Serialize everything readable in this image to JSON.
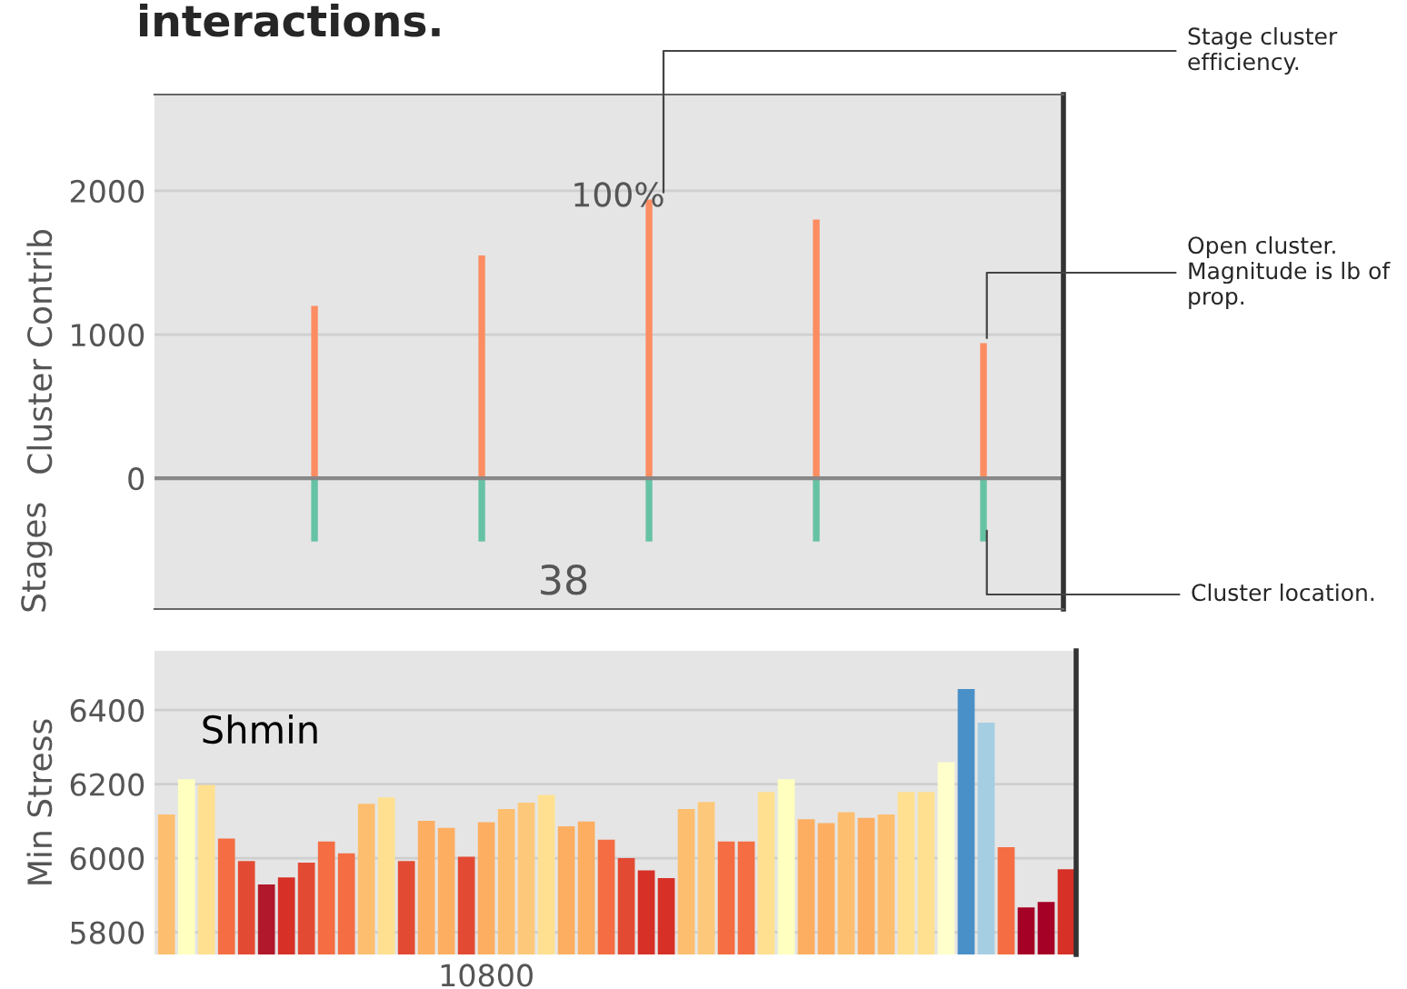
{
  "chart_data": [
    {
      "type": "bar",
      "title": "interactions.",
      "ylabel": "Cluster Contrib",
      "categories": [
        null,
        null,
        null,
        null,
        null
      ],
      "series": [
        {
          "color": "#fc8d62",
          "values": [
            1200,
            1550,
            1940,
            1800,
            940
          ]
        },
        {
          "color": "#66c2a5",
          "values": [
            -440,
            -440,
            -440,
            -440,
            -440
          ]
        }
      ],
      "stacked": true,
      "ylim": [
        -910,
        2670
      ],
      "yticks": [
        0,
        1000,
        2000
      ],
      "grid": "y",
      "annotations": [
        "Stages",
        "100%",
        "38",
        "Stage cluster efficiency.",
        "Open cluster. Magnitude is lb of prop.",
        "Cluster location."
      ]
    },
    {
      "type": "bar",
      "ylabel": "Min Stress",
      "categories": [
        null,
        null,
        null,
        null,
        null,
        null,
        null,
        null,
        null,
        null,
        null,
        null,
        null,
        null,
        null,
        null,
        "10800",
        null,
        null,
        null,
        null,
        null,
        null,
        null,
        null,
        null,
        null,
        null,
        null,
        null,
        null,
        null,
        null,
        null,
        null,
        null,
        null,
        null,
        null,
        null,
        null,
        null,
        null,
        null,
        null,
        null
      ],
      "values": [
        6118,
        6213,
        6198,
        6053,
        5992,
        5929,
        5948,
        5988,
        6045,
        6013,
        6147,
        6164,
        5992,
        6101,
        6082,
        6004,
        6097,
        6133,
        6150,
        6171,
        6086,
        6099,
        6050,
        6000,
        5967,
        5946,
        6133,
        6152,
        6045,
        6045,
        6179,
        6213,
        6105,
        6095,
        6124,
        6109,
        6118,
        6179,
        6179,
        6259,
        6457,
        6366,
        6030,
        5867,
        5882,
        5970
      ],
      "colors": [
        "#fdbf6f",
        "#ffffbf",
        "#fee090",
        "#f46d43",
        "#e34a33",
        "#b2182b",
        "#d73027",
        "#e34a33",
        "#f46d43",
        "#f46d43",
        "#fdbf6f",
        "#fee090",
        "#e34a33",
        "#fdae61",
        "#fdae61",
        "#e34a33",
        "#fdae61",
        "#fdbf6f",
        "#fdc879",
        "#fee090",
        "#fdae61",
        "#fdae61",
        "#f46d43",
        "#e34a33",
        "#d73027",
        "#d73027",
        "#fdbf6f",
        "#fdc879",
        "#f46d43",
        "#f46d43",
        "#fee090",
        "#ffffbf",
        "#fdae61",
        "#fdae61",
        "#fdbf6f",
        "#fdae61",
        "#fdbf6f",
        "#fee090",
        "#fee090",
        "#ffffcc",
        "#4a90c8",
        "#a6cee3",
        "#f46d43",
        "#a50026",
        "#a50026",
        "#d73027"
      ],
      "ylim": [
        5740,
        6560
      ],
      "yticks": [
        5800,
        6000,
        6200,
        6400
      ],
      "grid": "y",
      "annotations": [
        "Shmin"
      ]
    }
  ]
}
